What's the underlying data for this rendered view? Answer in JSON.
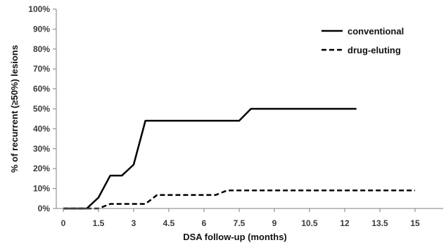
{
  "chart_data": {
    "type": "line",
    "xlabel": "DSA follow-up (months)",
    "ylabel": "% of recurrent (≥50%) lesions",
    "xlim": [
      -0.3,
      16.2
    ],
    "ylim": [
      0,
      100
    ],
    "x_ticks": [
      0,
      1.5,
      3,
      4.5,
      6,
      7.5,
      9,
      10.5,
      12,
      13.5,
      15
    ],
    "x_tick_labels": [
      "0",
      "1.5",
      "3",
      "4.5",
      "6",
      "7.5",
      "9",
      "10.5",
      "12",
      "13.5",
      "15"
    ],
    "y_ticks": [
      0,
      10,
      20,
      30,
      40,
      50,
      60,
      70,
      80,
      90,
      100
    ],
    "y_tick_labels": [
      "0%",
      "10%",
      "20%",
      "30%",
      "40%",
      "50%",
      "60%",
      "70%",
      "80%",
      "90%",
      "100%"
    ],
    "legend_position": "top-right",
    "grid": false,
    "series": [
      {
        "name": "conventional",
        "style": "solid",
        "color": "#000000",
        "points": [
          [
            0,
            0
          ],
          [
            1,
            0
          ],
          [
            1.5,
            5.5
          ],
          [
            2,
            16.5
          ],
          [
            2.5,
            16.5
          ],
          [
            3,
            22
          ],
          [
            3.5,
            44
          ],
          [
            7.5,
            44
          ],
          [
            8,
            50
          ],
          [
            12.5,
            50
          ]
        ]
      },
      {
        "name": "drug-eluting",
        "style": "dashed",
        "color": "#000000",
        "points": [
          [
            0,
            0
          ],
          [
            1.5,
            0
          ],
          [
            2,
            2.3
          ],
          [
            3.5,
            2.3
          ],
          [
            4,
            6.8
          ],
          [
            6.5,
            6.8
          ],
          [
            7,
            9.1
          ],
          [
            15,
            9.1
          ]
        ]
      }
    ]
  }
}
